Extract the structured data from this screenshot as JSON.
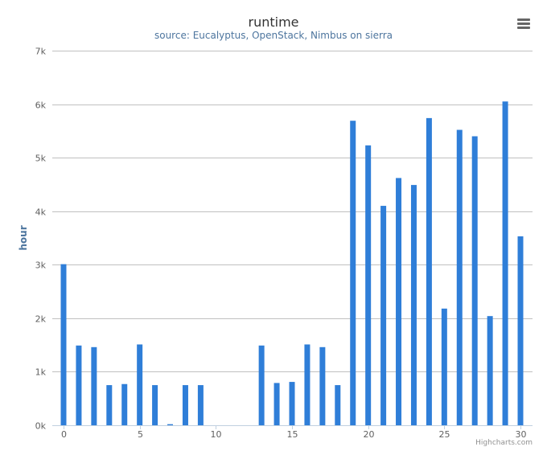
{
  "chart_data": {
    "type": "bar",
    "title": "runtime",
    "subtitle": "source: Eucalyptus, OpenStack, Nimbus on sierra",
    "ylabel": "hour",
    "xlabel": "",
    "ylim": [
      0,
      7000
    ],
    "yticks": [
      "0k",
      "1k",
      "2k",
      "3k",
      "4k",
      "5k",
      "6k",
      "7k"
    ],
    "xticks": [
      "0",
      "5",
      "10",
      "15",
      "20",
      "25",
      "30"
    ],
    "xlim": [
      0,
      30
    ],
    "grid": true,
    "bar_color": "#2f7ed8",
    "x": [
      0,
      1,
      2,
      3,
      4,
      5,
      6,
      7,
      8,
      9,
      10,
      11,
      12,
      13,
      14,
      15,
      16,
      17,
      18,
      19,
      20,
      21,
      22,
      23,
      24,
      25,
      26,
      27,
      28,
      29,
      30
    ],
    "values": [
      3010,
      1490,
      1460,
      750,
      770,
      1510,
      750,
      20,
      750,
      750,
      0,
      0,
      0,
      1490,
      790,
      810,
      1510,
      1460,
      750,
      5690,
      5230,
      4100,
      4620,
      4490,
      5740,
      2180,
      5520,
      5400,
      2040,
      6050,
      3530
    ]
  },
  "credits": "Highcharts.com",
  "menu_icon": "menu-icon"
}
